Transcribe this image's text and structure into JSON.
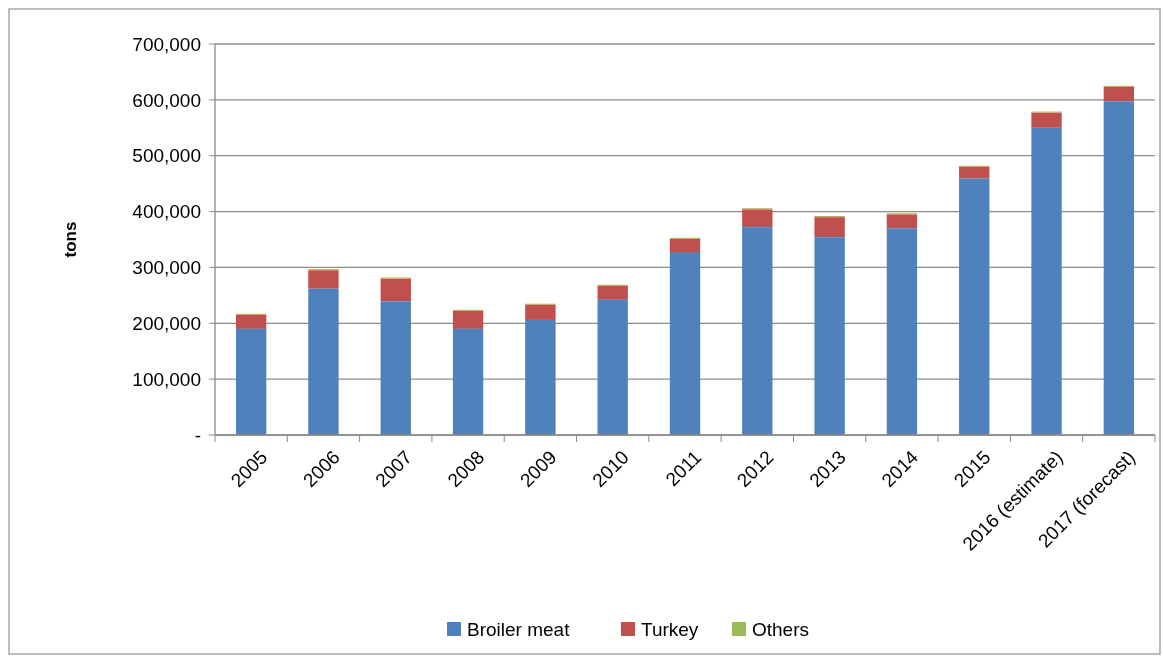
{
  "chart_data": {
    "type": "bar",
    "stacked": true,
    "ylabel": "tons",
    "categories": [
      "2005",
      "2006",
      "2007",
      "2008",
      "2009",
      "2010",
      "2011",
      "2012",
      "2013",
      "2014",
      "2015",
      "2016 (estimate)",
      "2017 (forecast)"
    ],
    "series": [
      {
        "name": "Broiler meat",
        "color": "#4f81bd",
        "values": [
          190000,
          262000,
          239000,
          190000,
          206000,
          242000,
          326000,
          372000,
          354000,
          370000,
          459000,
          550000,
          597000
        ]
      },
      {
        "name": "Turkey",
        "color": "#c0504d",
        "values": [
          25000,
          33000,
          41000,
          32000,
          27000,
          25000,
          25000,
          32000,
          36000,
          25000,
          21000,
          27000,
          26000
        ]
      },
      {
        "name": "Others",
        "color": "#9bbb59",
        "values": [
          2000,
          2000,
          2000,
          2000,
          2000,
          2000,
          2000,
          2000,
          2000,
          2000,
          2000,
          2000,
          2000
        ]
      }
    ],
    "ylim": [
      0,
      700000
    ],
    "yticks": [
      {
        "value": 0,
        "label": "-"
      },
      {
        "value": 100000,
        "label": "100,000"
      },
      {
        "value": 200000,
        "label": "200,000"
      },
      {
        "value": 300000,
        "label": "300,000"
      },
      {
        "value": 400000,
        "label": "400,000"
      },
      {
        "value": 500000,
        "label": "500,000"
      },
      {
        "value": 600000,
        "label": "600,000"
      },
      {
        "value": 700000,
        "label": "700,000"
      }
    ],
    "grid": "y",
    "legend": "bottom"
  }
}
